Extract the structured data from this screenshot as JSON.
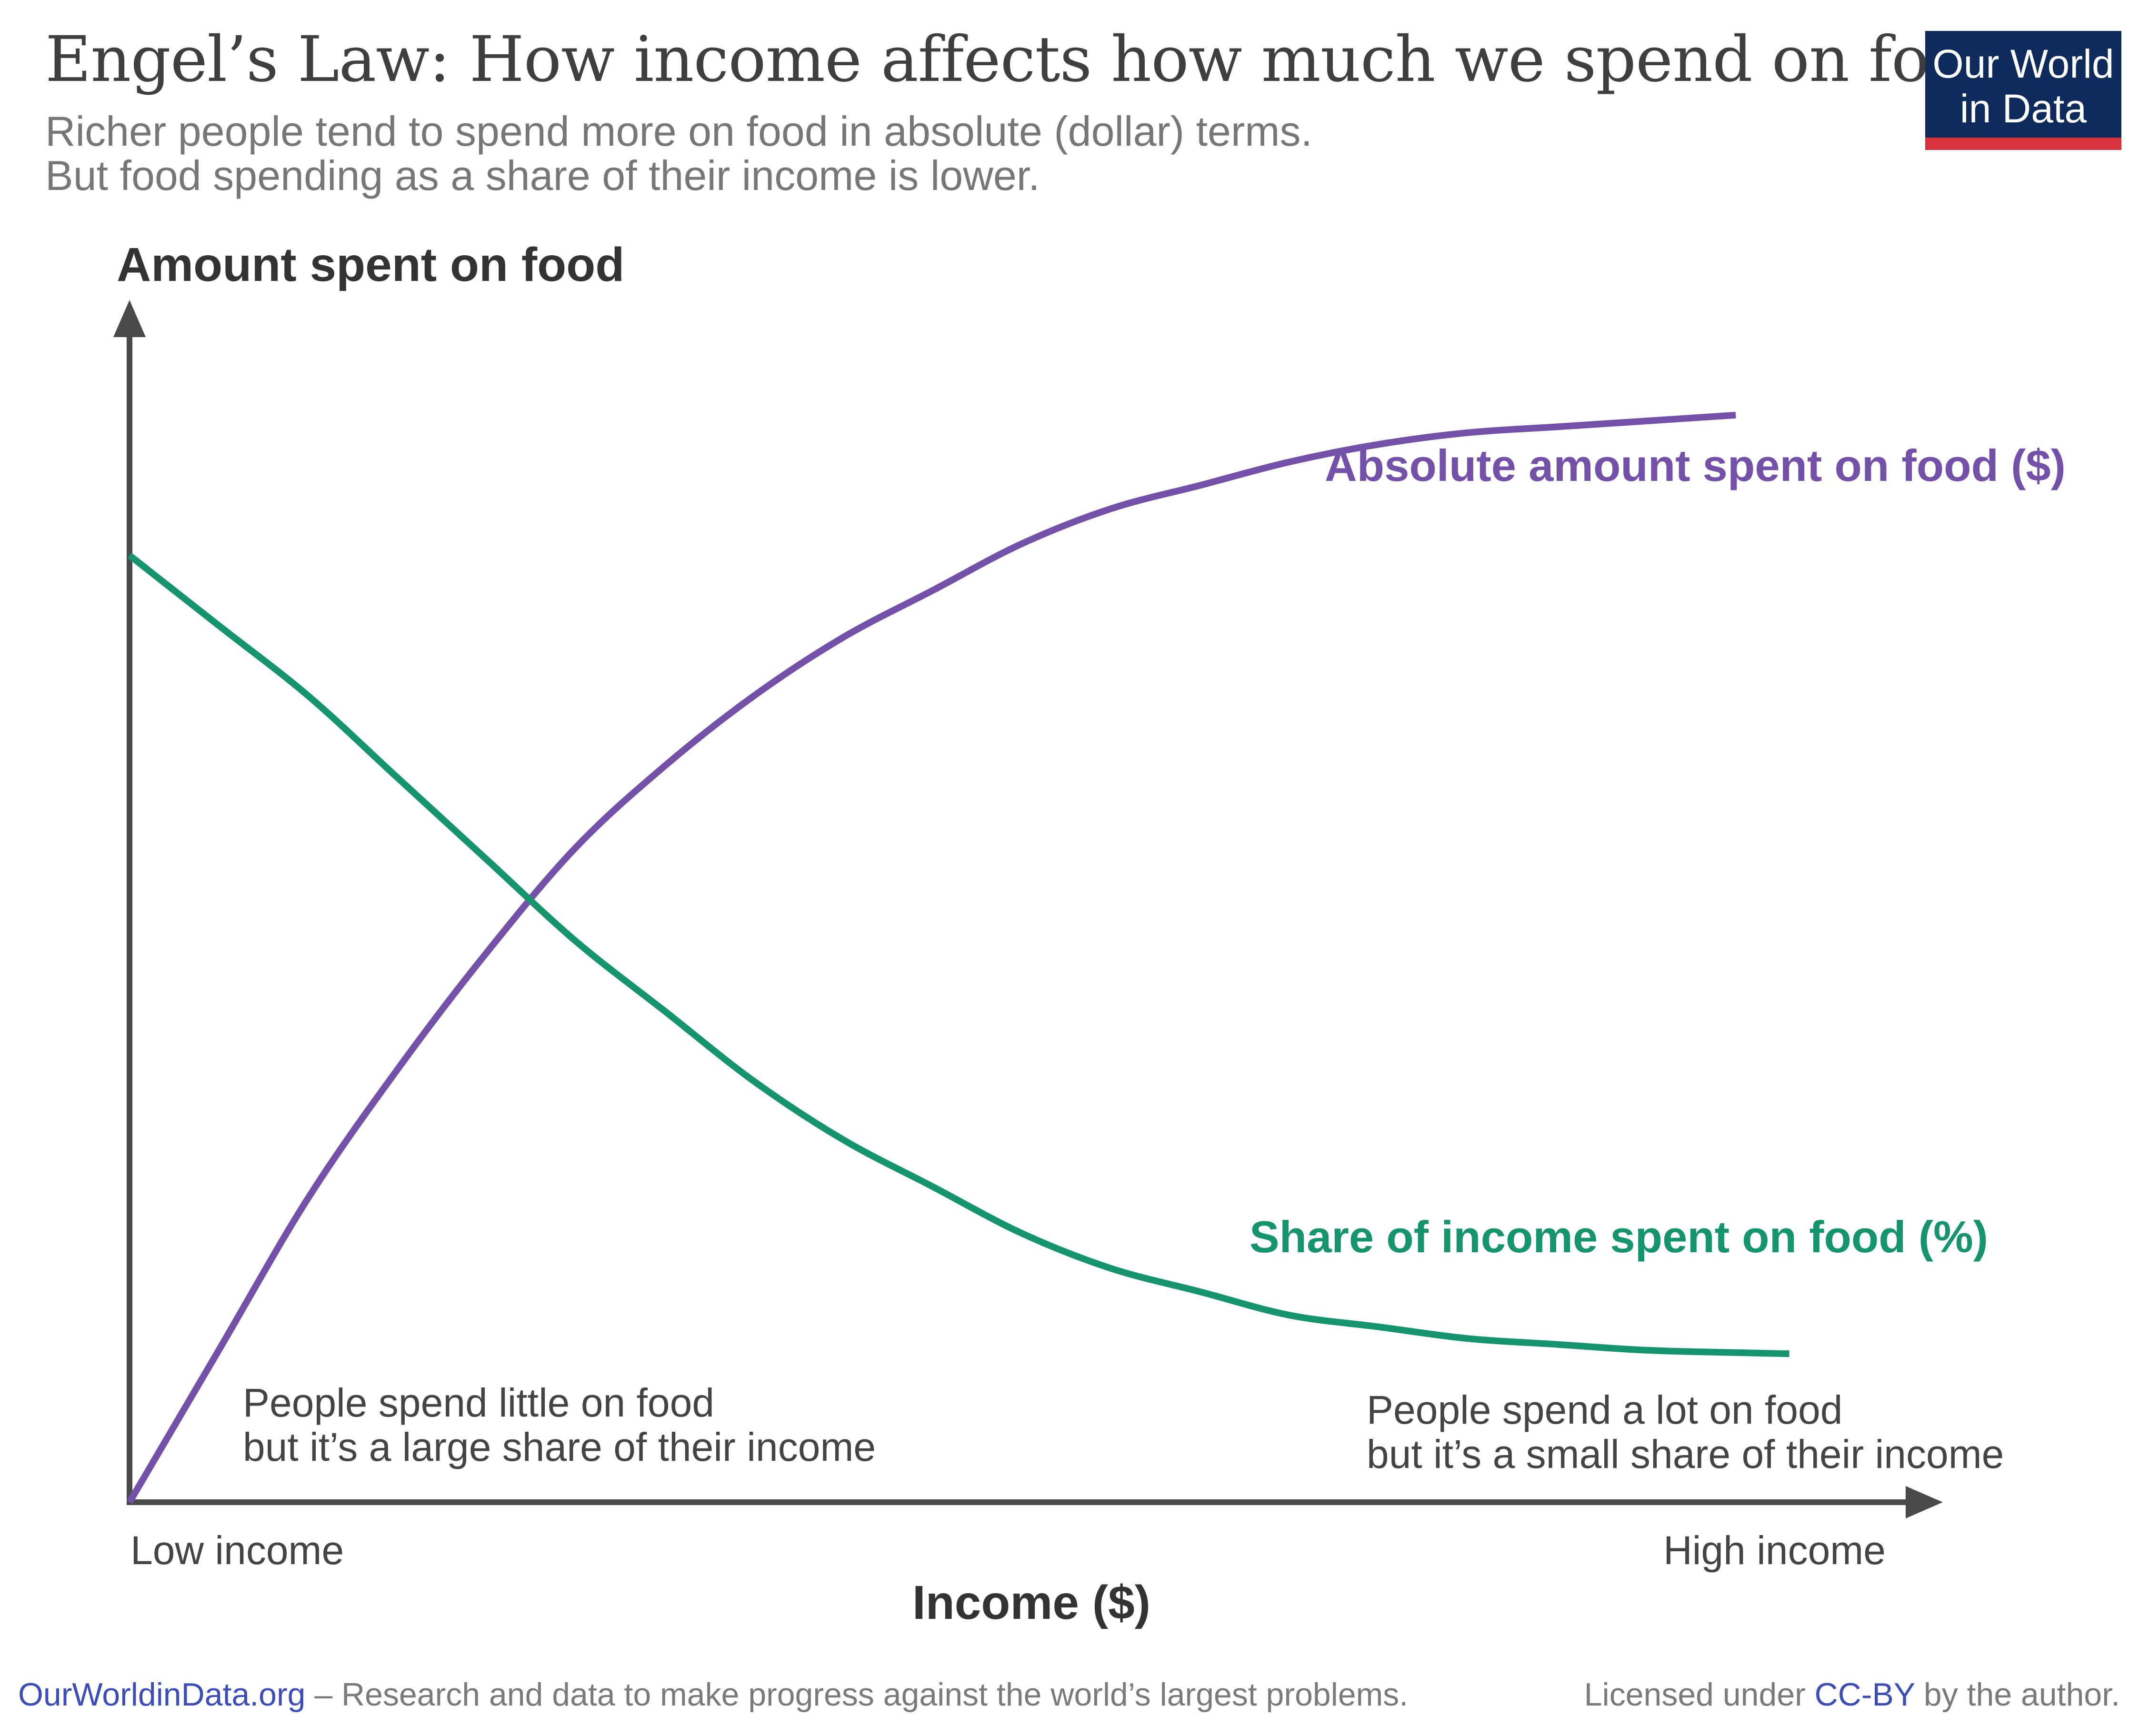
{
  "header": {
    "title": "Engel’s Law: How income affects how much we spend on food",
    "subtitle_line1": "Richer people tend to spend more on food in absolute (dollar) terms.",
    "subtitle_line2": "But food spending as a share of their income is lower."
  },
  "logo": {
    "line1": "Our World",
    "line2": "in Data"
  },
  "chart_data": {
    "type": "line",
    "title": "Engel’s Law: How income affects how much we spend on food",
    "ylabel": "Amount spent on food",
    "xlabel": "Income ($)",
    "x_tick_labels": [
      "Low income",
      "High income"
    ],
    "xlim": [
      0,
      1
    ],
    "ylim": [
      0,
      1
    ],
    "grid": false,
    "legend": "inline labels at line ends",
    "annotations": [
      {
        "line1": "People spend little on food",
        "line2": "but it’s a large share of their income"
      },
      {
        "line1": "People spend a lot on food",
        "line2": "but it’s a small share of their income"
      }
    ],
    "series": [
      {
        "name": "Absolute amount spent on food ($)",
        "color": "#7451a8",
        "x": [
          0,
          0.05,
          0.1,
          0.15,
          0.2,
          0.25,
          0.3,
          0.35,
          0.4,
          0.45,
          0.5,
          0.55,
          0.6,
          0.65,
          0.7,
          0.75,
          0.8,
          0.85,
          0.9
        ],
        "y": [
          0,
          0.13,
          0.26,
          0.37,
          0.47,
          0.56,
          0.63,
          0.69,
          0.74,
          0.78,
          0.82,
          0.85,
          0.87,
          0.89,
          0.905,
          0.915,
          0.92,
          0.925,
          0.93
        ]
      },
      {
        "name": "Share of income spent on food (%)",
        "color": "#16946e",
        "x": [
          0,
          0.05,
          0.1,
          0.15,
          0.2,
          0.25,
          0.3,
          0.35,
          0.4,
          0.45,
          0.5,
          0.55,
          0.6,
          0.65,
          0.7,
          0.75,
          0.8,
          0.85,
          0.9,
          0.93
        ],
        "y": [
          0.81,
          0.75,
          0.69,
          0.62,
          0.55,
          0.48,
          0.42,
          0.36,
          0.31,
          0.27,
          0.23,
          0.2,
          0.18,
          0.16,
          0.15,
          0.14,
          0.135,
          0.13,
          0.128,
          0.127
        ]
      }
    ]
  },
  "footer": {
    "site": "OurWorldinData.org",
    "tagline": " – Research and data to make progress against the world’s largest problems.",
    "license_prefix": "Licensed under ",
    "license_link": "CC-BY",
    "license_suffix": " by the author."
  }
}
